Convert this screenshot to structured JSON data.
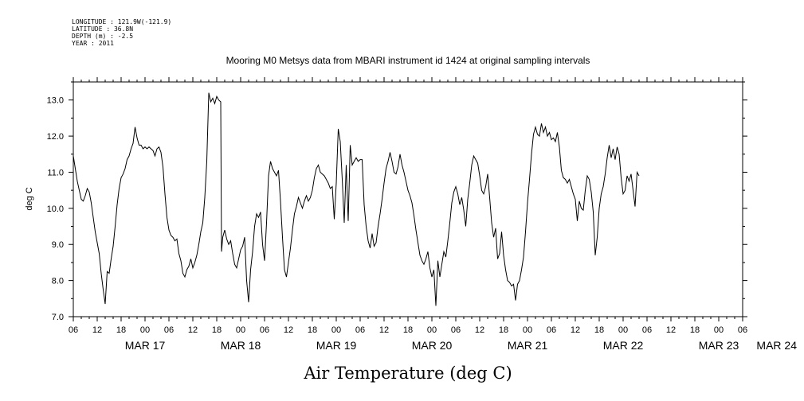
{
  "header": {
    "longitude": "LONGITUDE : 121.9W(-121.9)",
    "latitude": "LATITUDE : 36.8N",
    "depth": "DEPTH (m) : -2.5",
    "year": "YEAR : 2011"
  },
  "chart_data": {
    "type": "line",
    "title": "Mooring M0 Metsys data from MBARI instrument id 1424 at original sampling intervals",
    "xlabel": "Air Temperature (deg C)",
    "ylabel": "deg C",
    "ylim": [
      7.0,
      13.5
    ],
    "y_ticks": [
      "7.0",
      "8.0",
      "9.0",
      "10.0",
      "11.0",
      "12.0",
      "13.0"
    ],
    "x_range_hours": [
      0,
      168
    ],
    "x_hour_ticks": [
      "06",
      "12",
      "18",
      "00",
      "06",
      "12",
      "18",
      "00",
      "06",
      "12",
      "18",
      "00",
      "06",
      "12",
      "18",
      "00",
      "06",
      "12",
      "18",
      "00",
      "06",
      "12",
      "18",
      "00",
      "06",
      "12",
      "18",
      "00",
      "06"
    ],
    "x_date_labels": [
      "MAR 17",
      "MAR 18",
      "MAR 19",
      "MAR 20",
      "MAR 21",
      "MAR 22",
      "MAR 23",
      "MAR 24"
    ],
    "grid": false,
    "series": [
      {
        "color": "#000000",
        "points": [
          [
            0.0,
            11.45
          ],
          [
            0.5,
            11.1
          ],
          [
            1.0,
            10.75
          ],
          [
            1.5,
            10.5
          ],
          [
            2.0,
            10.25
          ],
          [
            2.5,
            10.2
          ],
          [
            3.0,
            10.35
          ],
          [
            3.5,
            10.55
          ],
          [
            4.0,
            10.45
          ],
          [
            4.5,
            10.15
          ],
          [
            5.0,
            9.75
          ],
          [
            5.5,
            9.35
          ],
          [
            6.0,
            9.05
          ],
          [
            6.5,
            8.75
          ],
          [
            7.0,
            8.2
          ],
          [
            7.5,
            7.75
          ],
          [
            8.0,
            7.35
          ],
          [
            8.5,
            8.25
          ],
          [
            9.0,
            8.2
          ],
          [
            9.5,
            8.6
          ],
          [
            10.0,
            8.95
          ],
          [
            10.5,
            9.5
          ],
          [
            11.0,
            10.1
          ],
          [
            11.5,
            10.55
          ],
          [
            12.0,
            10.85
          ],
          [
            12.5,
            10.95
          ],
          [
            13.0,
            11.1
          ],
          [
            13.5,
            11.35
          ],
          [
            14.0,
            11.45
          ],
          [
            14.5,
            11.65
          ],
          [
            15.0,
            11.8
          ],
          [
            15.5,
            12.25
          ],
          [
            16.0,
            11.95
          ],
          [
            16.5,
            11.75
          ],
          [
            17.0,
            11.75
          ],
          [
            17.5,
            11.65
          ],
          [
            18.0,
            11.7
          ],
          [
            18.5,
            11.65
          ],
          [
            19.0,
            11.7
          ],
          [
            19.5,
            11.65
          ],
          [
            20.0,
            11.6
          ],
          [
            20.5,
            11.45
          ],
          [
            21.0,
            11.65
          ],
          [
            21.5,
            11.7
          ],
          [
            22.0,
            11.55
          ],
          [
            22.5,
            11.15
          ],
          [
            23.0,
            10.4
          ],
          [
            23.5,
            9.75
          ],
          [
            24.0,
            9.4
          ],
          [
            24.5,
            9.25
          ],
          [
            25.0,
            9.2
          ],
          [
            25.5,
            9.1
          ],
          [
            26.0,
            9.15
          ],
          [
            26.5,
            8.75
          ],
          [
            27.0,
            8.55
          ],
          [
            27.5,
            8.2
          ],
          [
            28.0,
            8.1
          ],
          [
            28.5,
            8.3
          ],
          [
            29.0,
            8.4
          ],
          [
            29.5,
            8.6
          ],
          [
            30.0,
            8.35
          ],
          [
            30.5,
            8.5
          ],
          [
            31.0,
            8.7
          ],
          [
            31.5,
            9.0
          ],
          [
            32.0,
            9.35
          ],
          [
            32.5,
            9.6
          ],
          [
            33.0,
            10.3
          ],
          [
            33.5,
            11.3
          ],
          [
            34.0,
            13.2
          ],
          [
            34.5,
            12.95
          ],
          [
            35.0,
            13.05
          ],
          [
            35.5,
            12.9
          ],
          [
            36.0,
            13.1
          ],
          [
            36.5,
            13.0
          ],
          [
            37.0,
            12.95
          ],
          [
            37.2,
            8.8
          ],
          [
            37.5,
            9.2
          ],
          [
            38.0,
            9.4
          ],
          [
            38.5,
            9.15
          ],
          [
            39.0,
            9.0
          ],
          [
            39.5,
            9.1
          ],
          [
            40.0,
            8.75
          ],
          [
            40.5,
            8.45
          ],
          [
            41.0,
            8.35
          ],
          [
            41.5,
            8.6
          ],
          [
            42.0,
            8.85
          ],
          [
            42.5,
            8.95
          ],
          [
            43.0,
            9.2
          ],
          [
            43.5,
            8.0
          ],
          [
            44.0,
            7.4
          ],
          [
            44.5,
            8.3
          ],
          [
            45.0,
            8.8
          ],
          [
            45.5,
            9.5
          ],
          [
            46.0,
            9.85
          ],
          [
            46.5,
            9.75
          ],
          [
            47.0,
            9.9
          ],
          [
            47.5,
            9.0
          ],
          [
            48.0,
            8.55
          ],
          [
            48.5,
            9.6
          ],
          [
            49.0,
            10.9
          ],
          [
            49.5,
            11.3
          ],
          [
            50.0,
            11.1
          ],
          [
            50.5,
            11.0
          ],
          [
            51.0,
            10.9
          ],
          [
            51.5,
            11.05
          ],
          [
            52.0,
            10.2
          ],
          [
            52.5,
            9.2
          ],
          [
            53.0,
            8.3
          ],
          [
            53.5,
            8.1
          ],
          [
            54.0,
            8.5
          ],
          [
            54.5,
            8.9
          ],
          [
            55.0,
            9.4
          ],
          [
            55.5,
            9.85
          ],
          [
            56.0,
            10.05
          ],
          [
            56.5,
            10.3
          ],
          [
            57.0,
            10.15
          ],
          [
            57.5,
            10.0
          ],
          [
            58.0,
            10.2
          ],
          [
            58.5,
            10.35
          ],
          [
            59.0,
            10.2
          ],
          [
            59.5,
            10.3
          ],
          [
            60.0,
            10.5
          ],
          [
            60.5,
            10.85
          ],
          [
            61.0,
            11.1
          ],
          [
            61.5,
            11.2
          ],
          [
            62.0,
            11.0
          ],
          [
            62.5,
            10.95
          ],
          [
            63.0,
            10.9
          ],
          [
            63.5,
            10.8
          ],
          [
            64.0,
            10.7
          ],
          [
            64.5,
            10.55
          ],
          [
            65.0,
            10.6
          ],
          [
            65.5,
            9.7
          ],
          [
            66.0,
            10.7
          ],
          [
            66.5,
            12.2
          ],
          [
            67.0,
            11.85
          ],
          [
            67.5,
            10.8
          ],
          [
            68.0,
            9.6
          ],
          [
            68.5,
            11.2
          ],
          [
            69.0,
            9.65
          ],
          [
            69.5,
            11.75
          ],
          [
            70.0,
            11.2
          ],
          [
            70.5,
            11.3
          ],
          [
            71.0,
            11.4
          ],
          [
            71.5,
            11.3
          ],
          [
            72.0,
            11.35
          ],
          [
            72.5,
            11.35
          ],
          [
            73.0,
            10.1
          ],
          [
            73.5,
            9.5
          ],
          [
            74.0,
            9.1
          ],
          [
            74.5,
            8.9
          ],
          [
            75.0,
            9.3
          ],
          [
            75.5,
            8.95
          ],
          [
            76.0,
            9.05
          ],
          [
            76.5,
            9.5
          ],
          [
            77.0,
            9.85
          ],
          [
            77.5,
            10.25
          ],
          [
            78.0,
            10.7
          ],
          [
            78.5,
            11.1
          ],
          [
            79.0,
            11.3
          ],
          [
            79.5,
            11.55
          ],
          [
            80.0,
            11.3
          ],
          [
            80.5,
            11.0
          ],
          [
            81.0,
            10.95
          ],
          [
            81.5,
            11.15
          ],
          [
            82.0,
            11.5
          ],
          [
            82.5,
            11.2
          ],
          [
            83.0,
            11.0
          ],
          [
            83.5,
            10.75
          ],
          [
            84.0,
            10.5
          ],
          [
            84.5,
            10.35
          ],
          [
            85.0,
            10.15
          ],
          [
            85.5,
            9.8
          ],
          [
            86.0,
            9.4
          ],
          [
            86.5,
            9.05
          ],
          [
            87.0,
            8.7
          ],
          [
            87.5,
            8.55
          ],
          [
            88.0,
            8.45
          ],
          [
            88.5,
            8.6
          ],
          [
            89.0,
            8.8
          ],
          [
            89.5,
            8.35
          ],
          [
            90.0,
            8.1
          ],
          [
            90.5,
            8.3
          ],
          [
            91.0,
            7.3
          ],
          [
            91.5,
            8.55
          ],
          [
            92.0,
            8.1
          ],
          [
            92.5,
            8.45
          ],
          [
            93.0,
            8.8
          ],
          [
            93.5,
            8.65
          ],
          [
            94.0,
            9.1
          ],
          [
            94.5,
            9.6
          ],
          [
            95.0,
            10.15
          ],
          [
            95.5,
            10.45
          ],
          [
            96.0,
            10.6
          ],
          [
            96.5,
            10.4
          ],
          [
            97.0,
            10.1
          ],
          [
            97.5,
            10.3
          ],
          [
            98.0,
            9.95
          ],
          [
            98.5,
            9.5
          ],
          [
            99.0,
            10.25
          ],
          [
            99.5,
            10.7
          ],
          [
            100.0,
            11.2
          ],
          [
            100.5,
            11.45
          ],
          [
            101.0,
            11.35
          ],
          [
            101.5,
            11.25
          ],
          [
            102.0,
            10.9
          ],
          [
            102.5,
            10.5
          ],
          [
            103.0,
            10.4
          ],
          [
            103.5,
            10.6
          ],
          [
            104.0,
            10.95
          ],
          [
            104.5,
            10.3
          ],
          [
            105.0,
            9.6
          ],
          [
            105.5,
            9.2
          ],
          [
            106.0,
            9.45
          ],
          [
            106.5,
            8.6
          ],
          [
            107.0,
            8.75
          ],
          [
            107.5,
            9.35
          ],
          [
            108.0,
            8.7
          ],
          [
            108.5,
            8.3
          ],
          [
            109.0,
            8.0
          ],
          [
            109.5,
            7.95
          ],
          [
            110.0,
            7.85
          ],
          [
            110.5,
            7.9
          ],
          [
            111.0,
            7.45
          ],
          [
            111.5,
            7.9
          ],
          [
            112.0,
            8.0
          ],
          [
            112.5,
            8.3
          ],
          [
            113.0,
            8.65
          ],
          [
            113.5,
            9.35
          ],
          [
            114.0,
            10.15
          ],
          [
            114.5,
            10.8
          ],
          [
            115.0,
            11.5
          ],
          [
            115.5,
            12.05
          ],
          [
            116.0,
            12.25
          ],
          [
            116.5,
            12.05
          ],
          [
            117.0,
            12.0
          ],
          [
            117.5,
            12.35
          ],
          [
            118.0,
            12.1
          ],
          [
            118.5,
            12.25
          ],
          [
            119.0,
            12.0
          ],
          [
            119.5,
            12.1
          ],
          [
            120.0,
            11.9
          ],
          [
            120.5,
            11.95
          ],
          [
            121.0,
            11.85
          ],
          [
            121.5,
            12.1
          ],
          [
            122.0,
            11.7
          ],
          [
            122.5,
            11.05
          ],
          [
            123.0,
            10.85
          ],
          [
            123.5,
            10.8
          ],
          [
            124.0,
            10.7
          ],
          [
            124.5,
            10.8
          ],
          [
            125.0,
            10.6
          ],
          [
            125.5,
            10.4
          ],
          [
            126.0,
            10.25
          ],
          [
            126.5,
            9.65
          ],
          [
            127.0,
            10.2
          ],
          [
            127.5,
            10.0
          ],
          [
            128.0,
            9.95
          ],
          [
            128.5,
            10.5
          ],
          [
            129.0,
            10.9
          ],
          [
            129.5,
            10.8
          ],
          [
            130.0,
            10.45
          ],
          [
            130.5,
            9.9
          ],
          [
            131.0,
            8.7
          ],
          [
            131.5,
            9.2
          ],
          [
            132.0,
            10.0
          ],
          [
            132.5,
            10.4
          ],
          [
            133.0,
            10.6
          ],
          [
            133.5,
            10.95
          ],
          [
            134.0,
            11.4
          ],
          [
            134.5,
            11.75
          ],
          [
            135.0,
            11.4
          ],
          [
            135.5,
            11.65
          ],
          [
            136.0,
            11.35
          ],
          [
            136.5,
            11.7
          ],
          [
            137.0,
            11.5
          ],
          [
            137.5,
            10.85
          ],
          [
            138.0,
            10.4
          ],
          [
            138.5,
            10.5
          ],
          [
            139.0,
            10.9
          ],
          [
            139.5,
            10.75
          ],
          [
            140.0,
            10.95
          ],
          [
            140.5,
            10.5
          ],
          [
            141.0,
            10.05
          ],
          [
            141.5,
            11.0
          ],
          [
            142.0,
            10.9
          ]
        ]
      }
    ]
  }
}
